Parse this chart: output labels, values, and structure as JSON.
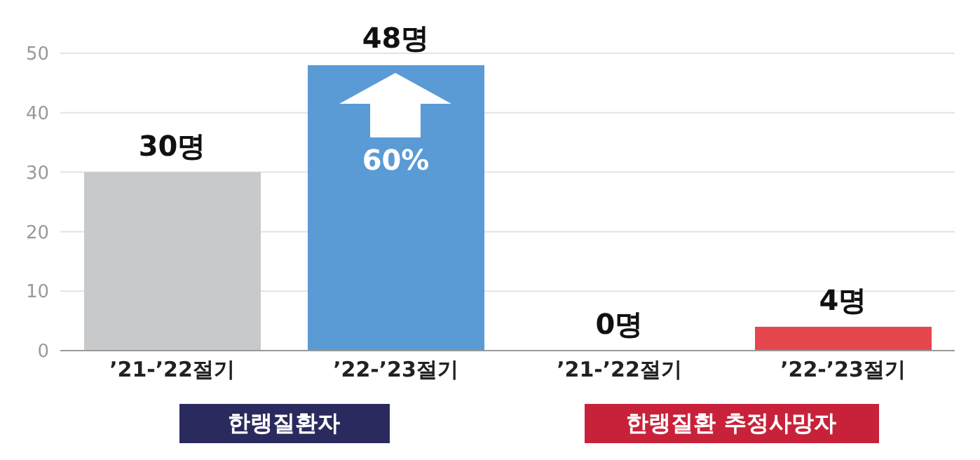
{
  "chart_data": {
    "type": "bar",
    "categories": [
      "’21-’22절기",
      "’22-’23절기",
      "’21-’22절기",
      "’22-’23절기"
    ],
    "values": [
      30,
      48,
      0,
      4
    ],
    "colors": [
      "#c8c9cb",
      "#5b9bd5",
      "#c8c9cb",
      "#e5474f"
    ],
    "value_labels": [
      "30명",
      "48명",
      "0명",
      "4명"
    ],
    "ylim": [
      0,
      50
    ],
    "yticks": [
      0,
      10,
      20,
      30,
      40,
      50
    ],
    "grid": "y",
    "annotations": [
      "60%",
      "한랭질환자",
      "한랭질환 추정사망자"
    ]
  }
}
